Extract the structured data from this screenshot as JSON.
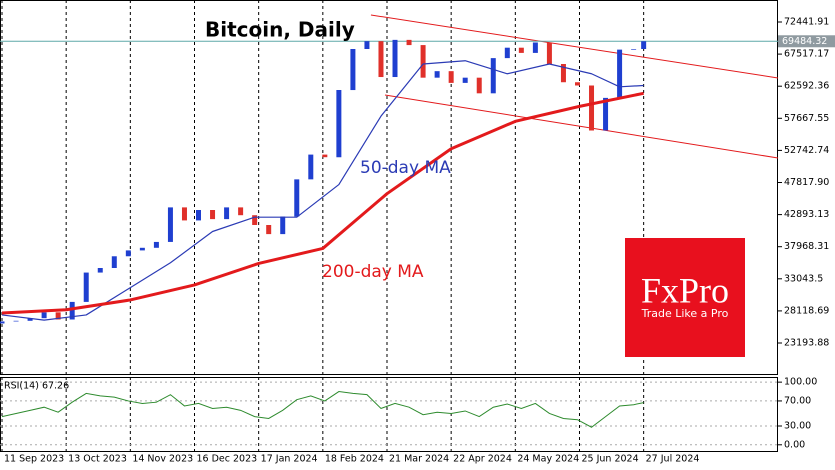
{
  "chart_data": {
    "type": "candle-line",
    "title": "Bitcoin, Daily",
    "xlim": [
      "2023-09-10",
      "2024-10-02"
    ],
    "xticks": [
      {
        "value": "2023-09-11",
        "label": "11 Sep 2023"
      },
      {
        "value": "2023-10-13",
        "label": "13 Oct 2023"
      },
      {
        "value": "2023-11-14",
        "label": "14 Nov 2023"
      },
      {
        "value": "2023-12-16",
        "label": "16 Dec 2023"
      },
      {
        "value": "2024-01-17",
        "label": "17 Jan 2024"
      },
      {
        "value": "2024-02-18",
        "label": "18 Feb 2024"
      },
      {
        "value": "2024-03-21",
        "label": "21 Mar 2024"
      },
      {
        "value": "2024-04-22",
        "label": "22 Apr 2024"
      },
      {
        "value": "2024-05-24",
        "label": "24 May 2024"
      },
      {
        "value": "2024-06-25",
        "label": "25 Jun 2024"
      },
      {
        "value": "2024-07-27",
        "label": "27 Jul 2024"
      }
    ],
    "ylim": [
      18285,
      75817
    ],
    "yticks": [
      72441.91,
      67517.17,
      62592.36,
      57667.55,
      52742.74,
      {
        "value": 47817.9,
        "label": "47817.90"
      },
      42893.13,
      37968.31,
      33043.5,
      28118.69,
      23193.88
    ],
    "current_price": 69484.32,
    "up_color": "#1f3fd0",
    "down_color": "#e0302a",
    "price": {
      "x": [
        "2023-09-11",
        "2023-09-18",
        "2023-09-25",
        "2023-10-02",
        "2023-10-09",
        "2023-10-16",
        "2023-10-23",
        "2023-10-30",
        "2023-11-06",
        "2023-11-13",
        "2023-11-20",
        "2023-11-27",
        "2023-12-04",
        "2023-12-11",
        "2023-12-18",
        "2023-12-25",
        "2024-01-01",
        "2024-01-08",
        "2024-01-15",
        "2024-01-22",
        "2024-01-29",
        "2024-02-05",
        "2024-02-12",
        "2024-02-19",
        "2024-02-26",
        "2024-03-04",
        "2024-03-11",
        "2024-03-18",
        "2024-03-25",
        "2024-04-01",
        "2024-04-08",
        "2024-04-15",
        "2024-04-22",
        "2024-04-29",
        "2024-05-06",
        "2024-05-13",
        "2024-05-20",
        "2024-05-27",
        "2024-06-03",
        "2024-06-10",
        "2024-06-17",
        "2024-06-24",
        "2024-07-01",
        "2024-07-08",
        "2024-07-15",
        "2024-07-22",
        "2024-07-27"
      ],
      "values": [
        26500,
        26600,
        27000,
        27900,
        26800,
        29500,
        34000,
        34700,
        36500,
        37400,
        37800,
        38700,
        44000,
        42000,
        43600,
        42200,
        44000,
        42800,
        41300,
        39900,
        42600,
        48300,
        52100,
        51700,
        62000,
        68300,
        69500,
        64000,
        69700,
        68900,
        63900,
        64900,
        63100,
        63900,
        61500,
        66900,
        68500,
        67700,
        69300,
        66000,
        63200,
        62700,
        55800,
        60800,
        68200,
        68300,
        69484.32
      ]
    },
    "series": [
      {
        "name": "50-day MA",
        "color": "#2b3bb5",
        "x": [
          "2023-09-11",
          "2023-10-02",
          "2023-10-23",
          "2023-11-13",
          "2023-12-04",
          "2023-12-25",
          "2024-01-15",
          "2024-02-05",
          "2024-02-26",
          "2024-03-18",
          "2024-04-08",
          "2024-04-29",
          "2024-05-20",
          "2024-06-10",
          "2024-07-01",
          "2024-07-15",
          "2024-07-27"
        ],
        "values": [
          27500,
          26700,
          27500,
          31500,
          35500,
          40300,
          42500,
          42500,
          47500,
          58000,
          66000,
          66500,
          64500,
          66000,
          64500,
          62500,
          62700
        ]
      },
      {
        "name": "200-day MA",
        "color": "#e31a1c",
        "x": [
          "2023-09-11",
          "2023-10-13",
          "2023-11-14",
          "2023-12-16",
          "2024-01-17",
          "2024-02-18",
          "2024-03-21",
          "2024-04-22",
          "2024-05-24",
          "2024-06-25",
          "2024-07-27"
        ],
        "values": [
          27800,
          28300,
          29800,
          32100,
          35400,
          37700,
          46100,
          53000,
          57200,
          59500,
          61500
        ]
      }
    ],
    "channel": {
      "color": "#e31a1c",
      "lines": [
        {
          "x": [
            "2024-03-13",
            "2024-10-02"
          ],
          "values": [
            73516,
            63851
          ]
        },
        {
          "x": [
            "2024-03-20",
            "2024-10-02"
          ],
          "values": [
            61242,
            51577
          ]
        }
      ]
    },
    "rsi": {
      "name": "RSI(14) 67.26",
      "color": "#2e8b2e",
      "ylim": [
        -11.5,
        108.2
      ],
      "yticks": [
        {
          "value": 100,
          "label": "100.00"
        },
        {
          "value": 70,
          "label": "70.00"
        },
        {
          "value": 30,
          "label": "30.00"
        },
        {
          "value": 0,
          "label": "0.00"
        }
      ],
      "values": [
        45,
        50,
        55,
        60,
        52,
        68,
        82,
        78,
        76,
        70,
        66,
        68,
        80,
        62,
        66,
        58,
        60,
        55,
        45,
        42,
        55,
        72,
        78,
        70,
        85,
        82,
        80,
        58,
        66,
        60,
        48,
        52,
        50,
        54,
        45,
        60,
        65,
        58,
        66,
        50,
        42,
        40,
        28,
        45,
        62,
        64,
        67.26
      ]
    },
    "logo": {
      "brand": "FxPro",
      "tagline": "Trade Like a Pro"
    }
  }
}
